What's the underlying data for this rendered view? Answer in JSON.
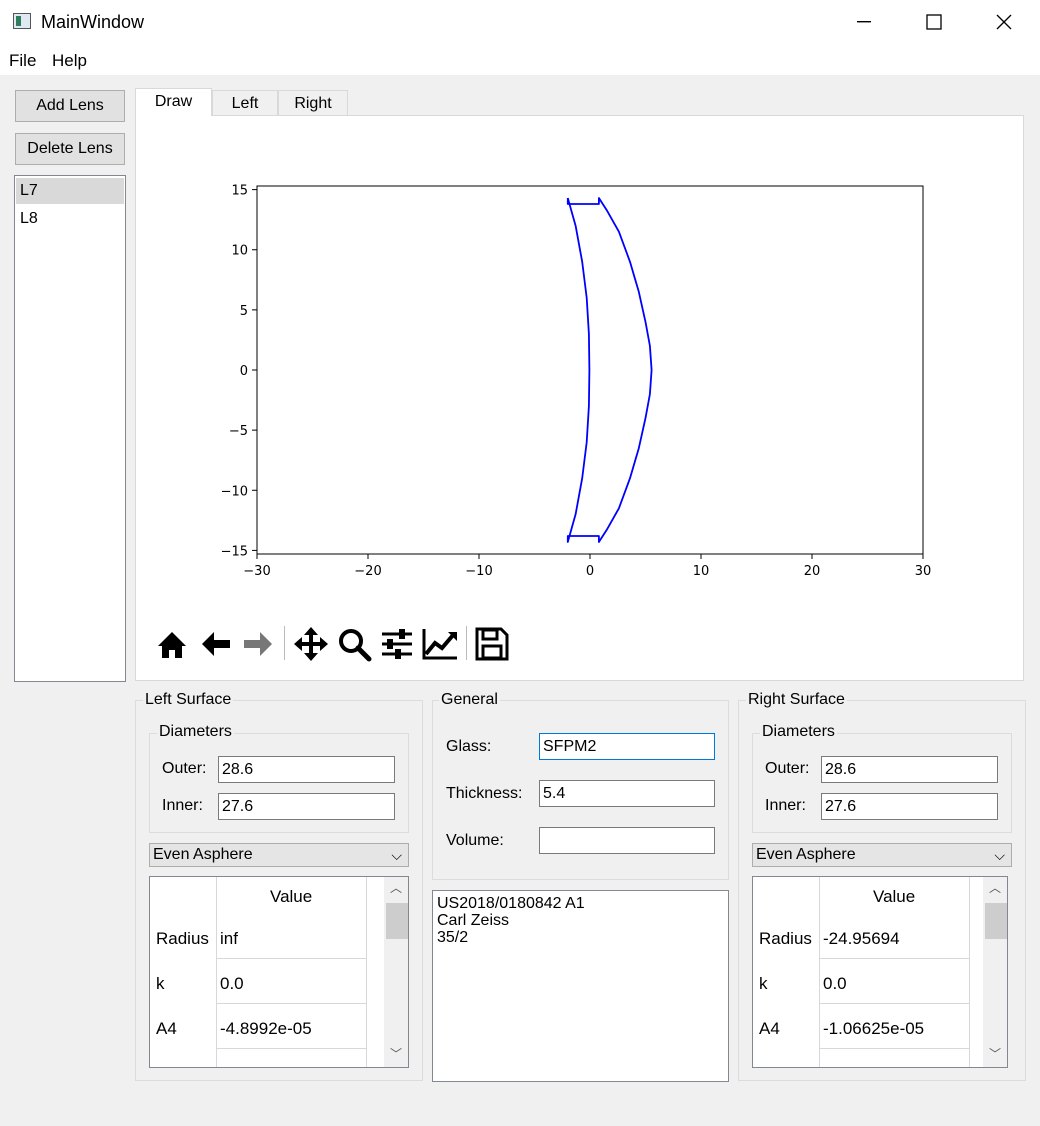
{
  "window": {
    "title": "MainWindow"
  },
  "menu": {
    "file": "File",
    "help": "Help"
  },
  "sidebar": {
    "add_lens": "Add Lens",
    "delete_lens": "Delete Lens",
    "lenses": [
      "L7",
      "L8"
    ],
    "selected": "L7"
  },
  "tabs": [
    "Draw",
    "Left",
    "Right"
  ],
  "active_tab": "Draw",
  "chart_data": {
    "type": "line",
    "title": "",
    "xlabel": "",
    "ylabel": "",
    "xlim": [
      -30,
      30
    ],
    "ylim": [
      -15.3,
      15.3
    ],
    "xticks": [
      -30,
      -20,
      -10,
      0,
      10,
      20,
      30
    ],
    "yticks": [
      -15,
      -10,
      -5,
      0,
      5,
      10,
      15
    ],
    "xtick_labels": [
      "−30",
      "−20",
      "−10",
      "0",
      "10",
      "20",
      "30"
    ],
    "ytick_labels": [
      "−15",
      "−10",
      "−5",
      "0",
      "5",
      "10",
      "15"
    ],
    "grid": false,
    "series": [
      {
        "color": "#0000ff",
        "x": [
          -2.0,
          -2.0,
          0.8,
          0.8,
          1.5,
          2.6,
          3.6,
          4.4,
          5.0,
          5.4,
          5.55,
          5.4,
          5.0,
          4.4,
          3.6,
          2.6,
          1.5,
          0.8,
          0.8,
          -2.0,
          -2.0,
          -1.3,
          -0.7,
          -0.3,
          -0.1,
          -0.05,
          -0.1,
          -0.3,
          -0.7,
          -1.3,
          -2.0
        ],
        "y": [
          14.3,
          13.8,
          13.8,
          14.3,
          13.3,
          11.5,
          9.0,
          6.5,
          4.0,
          2.0,
          0.0,
          -2.0,
          -4.0,
          -6.5,
          -9.0,
          -11.5,
          -13.3,
          -14.3,
          -13.8,
          -13.8,
          -14.3,
          -12.0,
          -9.0,
          -6.0,
          -3.0,
          0.0,
          3.0,
          6.0,
          9.0,
          12.0,
          14.3
        ]
      }
    ]
  },
  "toolbar": {
    "icons": [
      "home-icon",
      "back-arrow-icon",
      "forward-arrow-icon",
      "pan-icon",
      "zoom-icon",
      "configure-subplots-icon",
      "edit-axis-icon",
      "save-icon"
    ]
  },
  "left_surface": {
    "title": "Left Surface",
    "diameters_title": "Diameters",
    "outer_label": "Outer:",
    "outer_value": "28.6",
    "inner_label": "Inner:",
    "inner_value": "27.6",
    "surface_type": "Even Asphere",
    "table_header": "Value",
    "rows": [
      {
        "name": "Radius",
        "value": "inf"
      },
      {
        "name": "k",
        "value": "0.0"
      },
      {
        "name": "A4",
        "value": "-4.8992e-05"
      }
    ]
  },
  "general": {
    "title": "General",
    "glass_label": "Glass:",
    "glass_value": "SFPM2",
    "thickness_label": "Thickness:",
    "thickness_value": "5.4",
    "volume_label": "Volume:",
    "volume_value": "",
    "notes": [
      "US2018/0180842 A1",
      "Carl Zeiss",
      "35/2"
    ]
  },
  "right_surface": {
    "title": "Right Surface",
    "diameters_title": "Diameters",
    "outer_label": "Outer:",
    "outer_value": "28.6",
    "inner_label": "Inner:",
    "inner_value": "27.6",
    "surface_type": "Even Asphere",
    "table_header": "Value",
    "rows": [
      {
        "name": "Radius",
        "value": "-24.95694"
      },
      {
        "name": "k",
        "value": "0.0"
      },
      {
        "name": "A4",
        "value": "-1.06625e-05"
      }
    ]
  }
}
